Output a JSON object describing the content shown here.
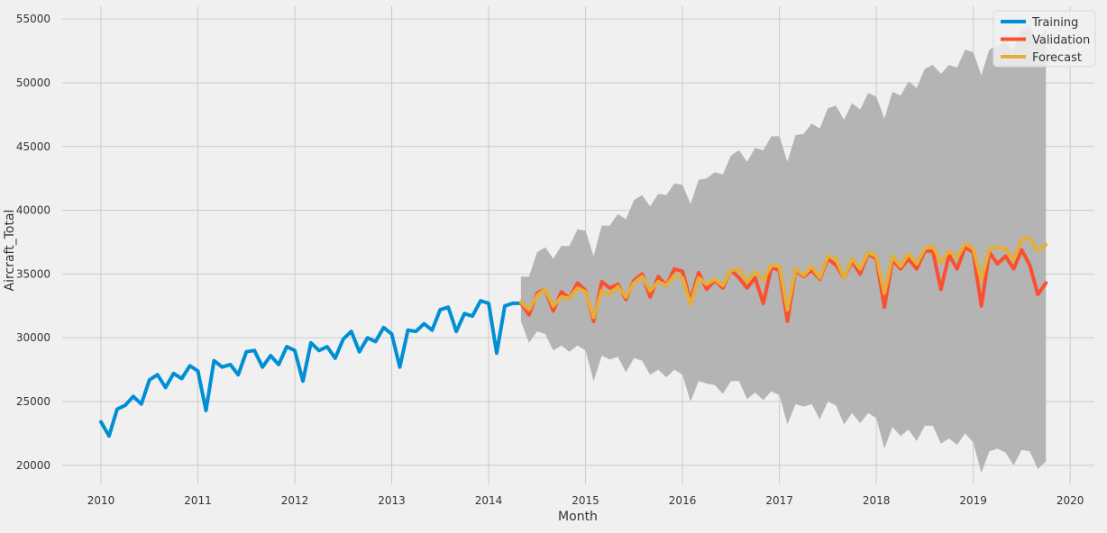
{
  "chart_data": {
    "type": "line",
    "xlabel": "Month",
    "ylabel": "Aircraft_Total",
    "xlim": [
      2009.6,
      2020.25
    ],
    "ylim": [
      18500,
      56000
    ],
    "x_ticks": [
      2010,
      2011,
      2012,
      2013,
      2014,
      2015,
      2016,
      2017,
      2018,
      2019,
      2020
    ],
    "y_ticks": [
      20000,
      25000,
      30000,
      35000,
      40000,
      45000,
      50000,
      55000
    ],
    "grid": true,
    "legend_position": "top-right",
    "series": [
      {
        "name": "Training",
        "color": "#008fd5",
        "start": 2010.0,
        "values": [
          23400,
          22300,
          24400,
          24700,
          25400,
          24800,
          26700,
          27100,
          26100,
          27200,
          26800,
          27800,
          27400,
          24300,
          28200,
          27700,
          27900,
          27100,
          28900,
          29000,
          27700,
          28600,
          27900,
          29300,
          29000,
          26600,
          29600,
          29000,
          29300,
          28400,
          29900,
          30500,
          28900,
          30000,
          29700,
          30800,
          30300,
          27700,
          30600,
          30500,
          31100,
          30600,
          32200,
          32400,
          30500,
          31900,
          31700,
          32900,
          32700,
          28800,
          32500,
          32700,
          32700
        ]
      },
      {
        "name": "Validation",
        "color": "#fc4f30",
        "start": 2014.3333,
        "values": [
          32700,
          31800,
          33500,
          33800,
          32100,
          33600,
          33100,
          34300,
          33700,
          31300,
          34400,
          33900,
          34200,
          33000,
          34500,
          35000,
          33200,
          34800,
          34100,
          35400,
          35200,
          32900,
          35100,
          33800,
          34500,
          33900,
          35300,
          34700,
          33900,
          34700,
          32700,
          35500,
          35300,
          31300,
          35300,
          34800,
          35300,
          34600,
          36200,
          35700,
          34700,
          36000,
          35000,
          36600,
          36200,
          32400,
          36100,
          35400,
          36200,
          35400,
          36800,
          36800,
          33800,
          36500,
          35400,
          37100,
          36700,
          32500,
          36700,
          35800,
          36400,
          35400,
          36900,
          35700,
          33400,
          34300
        ]
      },
      {
        "name": "Forecast",
        "color": "#e5ae38",
        "start": 2014.3333,
        "values": [
          32800,
          32200,
          33300,
          33800,
          32500,
          33200,
          33100,
          33900,
          33600,
          31600,
          33700,
          33400,
          34000,
          33200,
          34300,
          34800,
          33700,
          34400,
          34100,
          34900,
          34700,
          32600,
          34700,
          34200,
          34600,
          34100,
          35300,
          35400,
          34400,
          35200,
          34500,
          35700,
          35600,
          32200,
          35400,
          34900,
          35600,
          34700,
          36400,
          36200,
          34700,
          36200,
          35400,
          36700,
          36400,
          33500,
          36400,
          35600,
          36600,
          35800,
          37000,
          37200,
          35900,
          36800,
          36300,
          37400,
          37000,
          34500,
          37000,
          37100,
          37000,
          36100,
          37700,
          37800,
          36800,
          37300
        ]
      }
    ],
    "confidence_band": {
      "color": "#b0b0b0",
      "start": 2014.3333,
      "lower": [
        31300,
        29600,
        30500,
        30300,
        29000,
        29400,
        28900,
        29400,
        29000,
        26600,
        28600,
        28300,
        28500,
        27300,
        28400,
        28200,
        27100,
        27500,
        26900,
        27500,
        27100,
        25000,
        26600,
        26400,
        26300,
        25600,
        26600,
        26600,
        25200,
        25700,
        25100,
        25800,
        25500,
        23200,
        24800,
        24600,
        24800,
        23600,
        25000,
        24700,
        23200,
        24100,
        23300,
        24100,
        23700,
        21300,
        23000,
        22300,
        22800,
        21900,
        23100,
        23100,
        21700,
        22100,
        21600,
        22500,
        21800,
        19400,
        21100,
        21300,
        21000,
        20000,
        21200,
        21100,
        19700,
        20300
      ],
      "upper": [
        34800,
        34800,
        36700,
        37100,
        36200,
        37200,
        37200,
        38500,
        38400,
        36400,
        38800,
        38800,
        39700,
        39300,
        40800,
        41200,
        40300,
        41300,
        41200,
        42100,
        42000,
        40500,
        42400,
        42500,
        43000,
        42800,
        44300,
        44700,
        43800,
        44900,
        44700,
        45800,
        45800,
        43800,
        45900,
        46000,
        46800,
        46400,
        48000,
        48200,
        47100,
        48400,
        47900,
        49200,
        48900,
        47200,
        49300,
        49000,
        50100,
        49600,
        51100,
        51400,
        50700,
        51400,
        51200,
        52600,
        52400,
        50600,
        52600,
        52900,
        53200,
        52500,
        54100,
        54400,
        53300,
        54200
      ]
    }
  }
}
